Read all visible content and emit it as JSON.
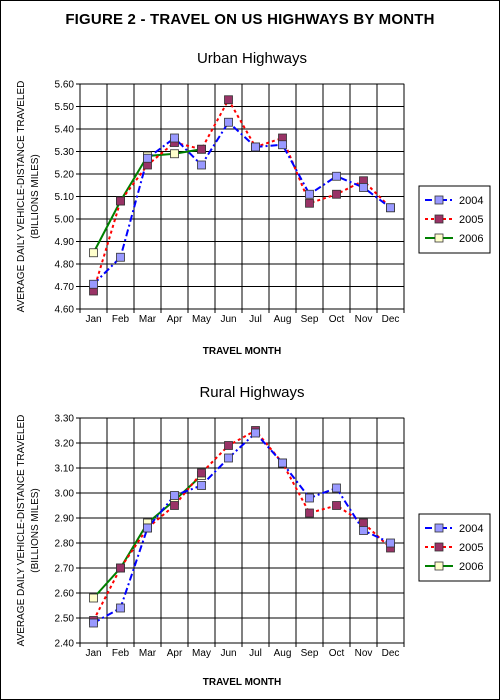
{
  "figure_title": "FIGURE 2 - TRAVEL ON US HIGHWAYS BY MONTH",
  "chart_data": [
    {
      "type": "line",
      "title": "Urban Highways",
      "xlabel": "TRAVEL MONTH",
      "ylabel_lines": [
        "AVERAGE DAILY VEHICLE-DISTANCE TRAVELED",
        "(BILLIONS MILES)"
      ],
      "categories": [
        "Jan",
        "Feb",
        "Mar",
        "Apr",
        "May",
        "Jun",
        "Jul",
        "Aug",
        "Sep",
        "Oct",
        "Nov",
        "Dec"
      ],
      "ylim": [
        4.6,
        5.6
      ],
      "yticks": [
        4.6,
        4.7,
        4.8,
        4.9,
        5.0,
        5.1,
        5.2,
        5.3,
        5.4,
        5.5,
        5.6
      ],
      "ytick_labels": [
        "4.60",
        "4.70",
        "4.80",
        "4.90",
        "5.00",
        "5.10",
        "5.20",
        "5.30",
        "5.40",
        "5.50",
        "5.60"
      ],
      "grid": true,
      "legend_position": "right",
      "series": [
        {
          "name": "2004",
          "color": "#0000ff",
          "marker_color": "#9999ff",
          "line_style": "dash-dot",
          "values": [
            4.71,
            4.83,
            5.27,
            5.36,
            5.24,
            5.43,
            5.32,
            5.33,
            5.11,
            5.19,
            5.14,
            5.05
          ]
        },
        {
          "name": "2005",
          "color": "#ff0000",
          "marker_color": "#993366",
          "line_style": "dotted",
          "values": [
            4.68,
            5.08,
            5.24,
            5.34,
            5.31,
            5.53,
            5.32,
            5.36,
            5.07,
            5.11,
            5.17,
            5.05
          ]
        },
        {
          "name": "2006",
          "color": "#008000",
          "marker_color": "#ffffcc",
          "line_style": "solid",
          "values": [
            4.85,
            5.08,
            5.28,
            5.29,
            5.31,
            null,
            null,
            null,
            null,
            null,
            null,
            null
          ]
        }
      ]
    },
    {
      "type": "line",
      "title": "Rural Highways",
      "xlabel": "TRAVEL MONTH",
      "ylabel_lines": [
        "AVERAGE DAILY VEHICLE-DISTANCE TRAVELED",
        "(BILLIONS MILES)"
      ],
      "categories": [
        "Jan",
        "Feb",
        "Mar",
        "Apr",
        "May",
        "Jun",
        "Jul",
        "Aug",
        "Sep",
        "Oct",
        "Nov",
        "Dec"
      ],
      "ylim": [
        2.4,
        3.3
      ],
      "yticks": [
        2.4,
        2.5,
        2.6,
        2.7,
        2.8,
        2.9,
        3.0,
        3.1,
        3.2,
        3.3
      ],
      "ytick_labels": [
        "2.40",
        "2.50",
        "2.60",
        "2.70",
        "2.80",
        "2.90",
        "3.00",
        "3.10",
        "3.20",
        "3.30"
      ],
      "grid": true,
      "legend_position": "right",
      "series": [
        {
          "name": "2004",
          "color": "#0000ff",
          "marker_color": "#9999ff",
          "line_style": "dash-dot",
          "values": [
            2.48,
            2.54,
            2.86,
            2.99,
            3.03,
            3.14,
            3.24,
            3.12,
            2.98,
            3.02,
            2.85,
            2.8
          ]
        },
        {
          "name": "2005",
          "color": "#ff0000",
          "marker_color": "#993366",
          "line_style": "dotted",
          "values": [
            2.49,
            2.7,
            2.86,
            2.95,
            3.08,
            3.19,
            3.25,
            3.12,
            2.92,
            2.95,
            2.88,
            2.78
          ]
        },
        {
          "name": "2006",
          "color": "#008000",
          "marker_color": "#ffffcc",
          "line_style": "solid",
          "values": [
            2.58,
            2.7,
            2.88,
            2.97,
            3.07,
            null,
            null,
            null,
            null,
            null,
            null,
            null
          ]
        }
      ]
    }
  ]
}
